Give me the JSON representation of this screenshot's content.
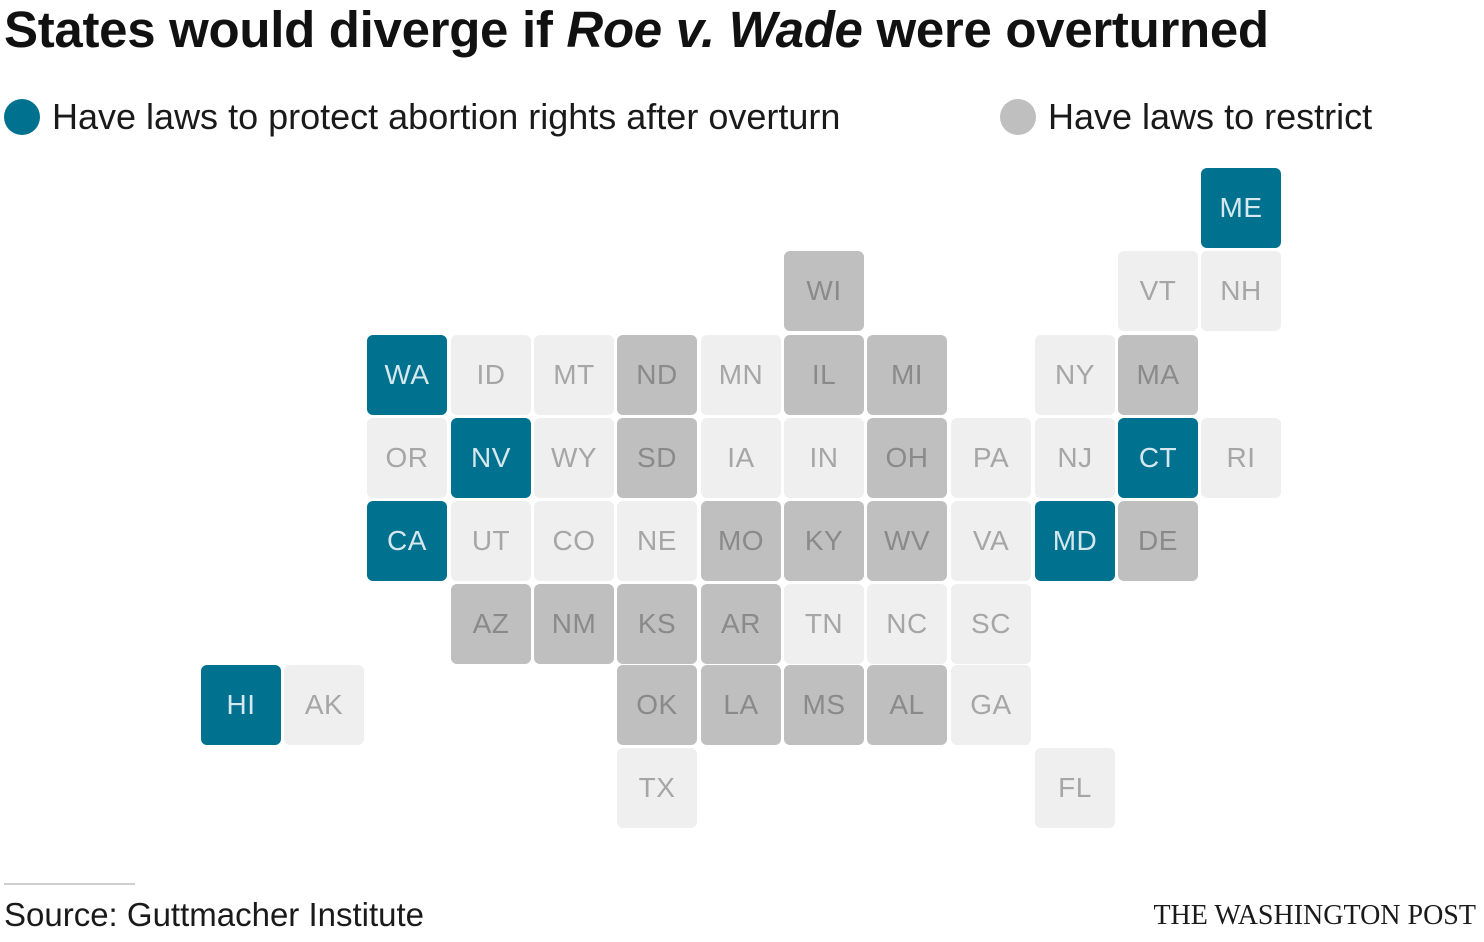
{
  "title": {
    "part1": "States would diverge if ",
    "italic": "Roe v. Wade",
    "part2": " were overturned"
  },
  "legend": [
    {
      "key": "protect",
      "label": "Have laws to protect abortion rights after overturn",
      "color": "#00718f"
    },
    {
      "key": "restrict",
      "label": "Have laws to restrict",
      "color": "#bfbfbf"
    }
  ],
  "colors": {
    "protect": "#00718f",
    "restrict": "#bfbfbf",
    "none": "#efefef"
  },
  "states": [
    {
      "abbr": "ME",
      "status": "protect"
    },
    {
      "abbr": "WI",
      "status": "restrict"
    },
    {
      "abbr": "VT",
      "status": "none"
    },
    {
      "abbr": "NH",
      "status": "none"
    },
    {
      "abbr": "WA",
      "status": "protect"
    },
    {
      "abbr": "ID",
      "status": "none"
    },
    {
      "abbr": "MT",
      "status": "none"
    },
    {
      "abbr": "ND",
      "status": "restrict"
    },
    {
      "abbr": "MN",
      "status": "none"
    },
    {
      "abbr": "IL",
      "status": "restrict"
    },
    {
      "abbr": "MI",
      "status": "restrict"
    },
    {
      "abbr": "NY",
      "status": "none"
    },
    {
      "abbr": "MA",
      "status": "restrict"
    },
    {
      "abbr": "OR",
      "status": "none"
    },
    {
      "abbr": "NV",
      "status": "protect"
    },
    {
      "abbr": "WY",
      "status": "none"
    },
    {
      "abbr": "SD",
      "status": "restrict"
    },
    {
      "abbr": "IA",
      "status": "none"
    },
    {
      "abbr": "IN",
      "status": "none"
    },
    {
      "abbr": "OH",
      "status": "restrict"
    },
    {
      "abbr": "PA",
      "status": "none"
    },
    {
      "abbr": "NJ",
      "status": "none"
    },
    {
      "abbr": "CT",
      "status": "protect"
    },
    {
      "abbr": "RI",
      "status": "none"
    },
    {
      "abbr": "CA",
      "status": "protect"
    },
    {
      "abbr": "UT",
      "status": "none"
    },
    {
      "abbr": "CO",
      "status": "none"
    },
    {
      "abbr": "NE",
      "status": "none"
    },
    {
      "abbr": "MO",
      "status": "restrict"
    },
    {
      "abbr": "KY",
      "status": "restrict"
    },
    {
      "abbr": "WV",
      "status": "restrict"
    },
    {
      "abbr": "VA",
      "status": "none"
    },
    {
      "abbr": "MD",
      "status": "protect"
    },
    {
      "abbr": "DE",
      "status": "restrict"
    },
    {
      "abbr": "AZ",
      "status": "restrict"
    },
    {
      "abbr": "NM",
      "status": "restrict"
    },
    {
      "abbr": "KS",
      "status": "restrict"
    },
    {
      "abbr": "AR",
      "status": "restrict"
    },
    {
      "abbr": "TN",
      "status": "none"
    },
    {
      "abbr": "NC",
      "status": "none"
    },
    {
      "abbr": "SC",
      "status": "none"
    },
    {
      "abbr": "HI",
      "status": "protect"
    },
    {
      "abbr": "AK",
      "status": "none"
    },
    {
      "abbr": "OK",
      "status": "restrict"
    },
    {
      "abbr": "LA",
      "status": "restrict"
    },
    {
      "abbr": "MS",
      "status": "restrict"
    },
    {
      "abbr": "AL",
      "status": "restrict"
    },
    {
      "abbr": "GA",
      "status": "none"
    },
    {
      "abbr": "TX",
      "status": "none"
    },
    {
      "abbr": "FL",
      "status": "none"
    }
  ],
  "source": "Source: Guttmacher Institute",
  "brand": "THE WASHINGTON POST"
}
